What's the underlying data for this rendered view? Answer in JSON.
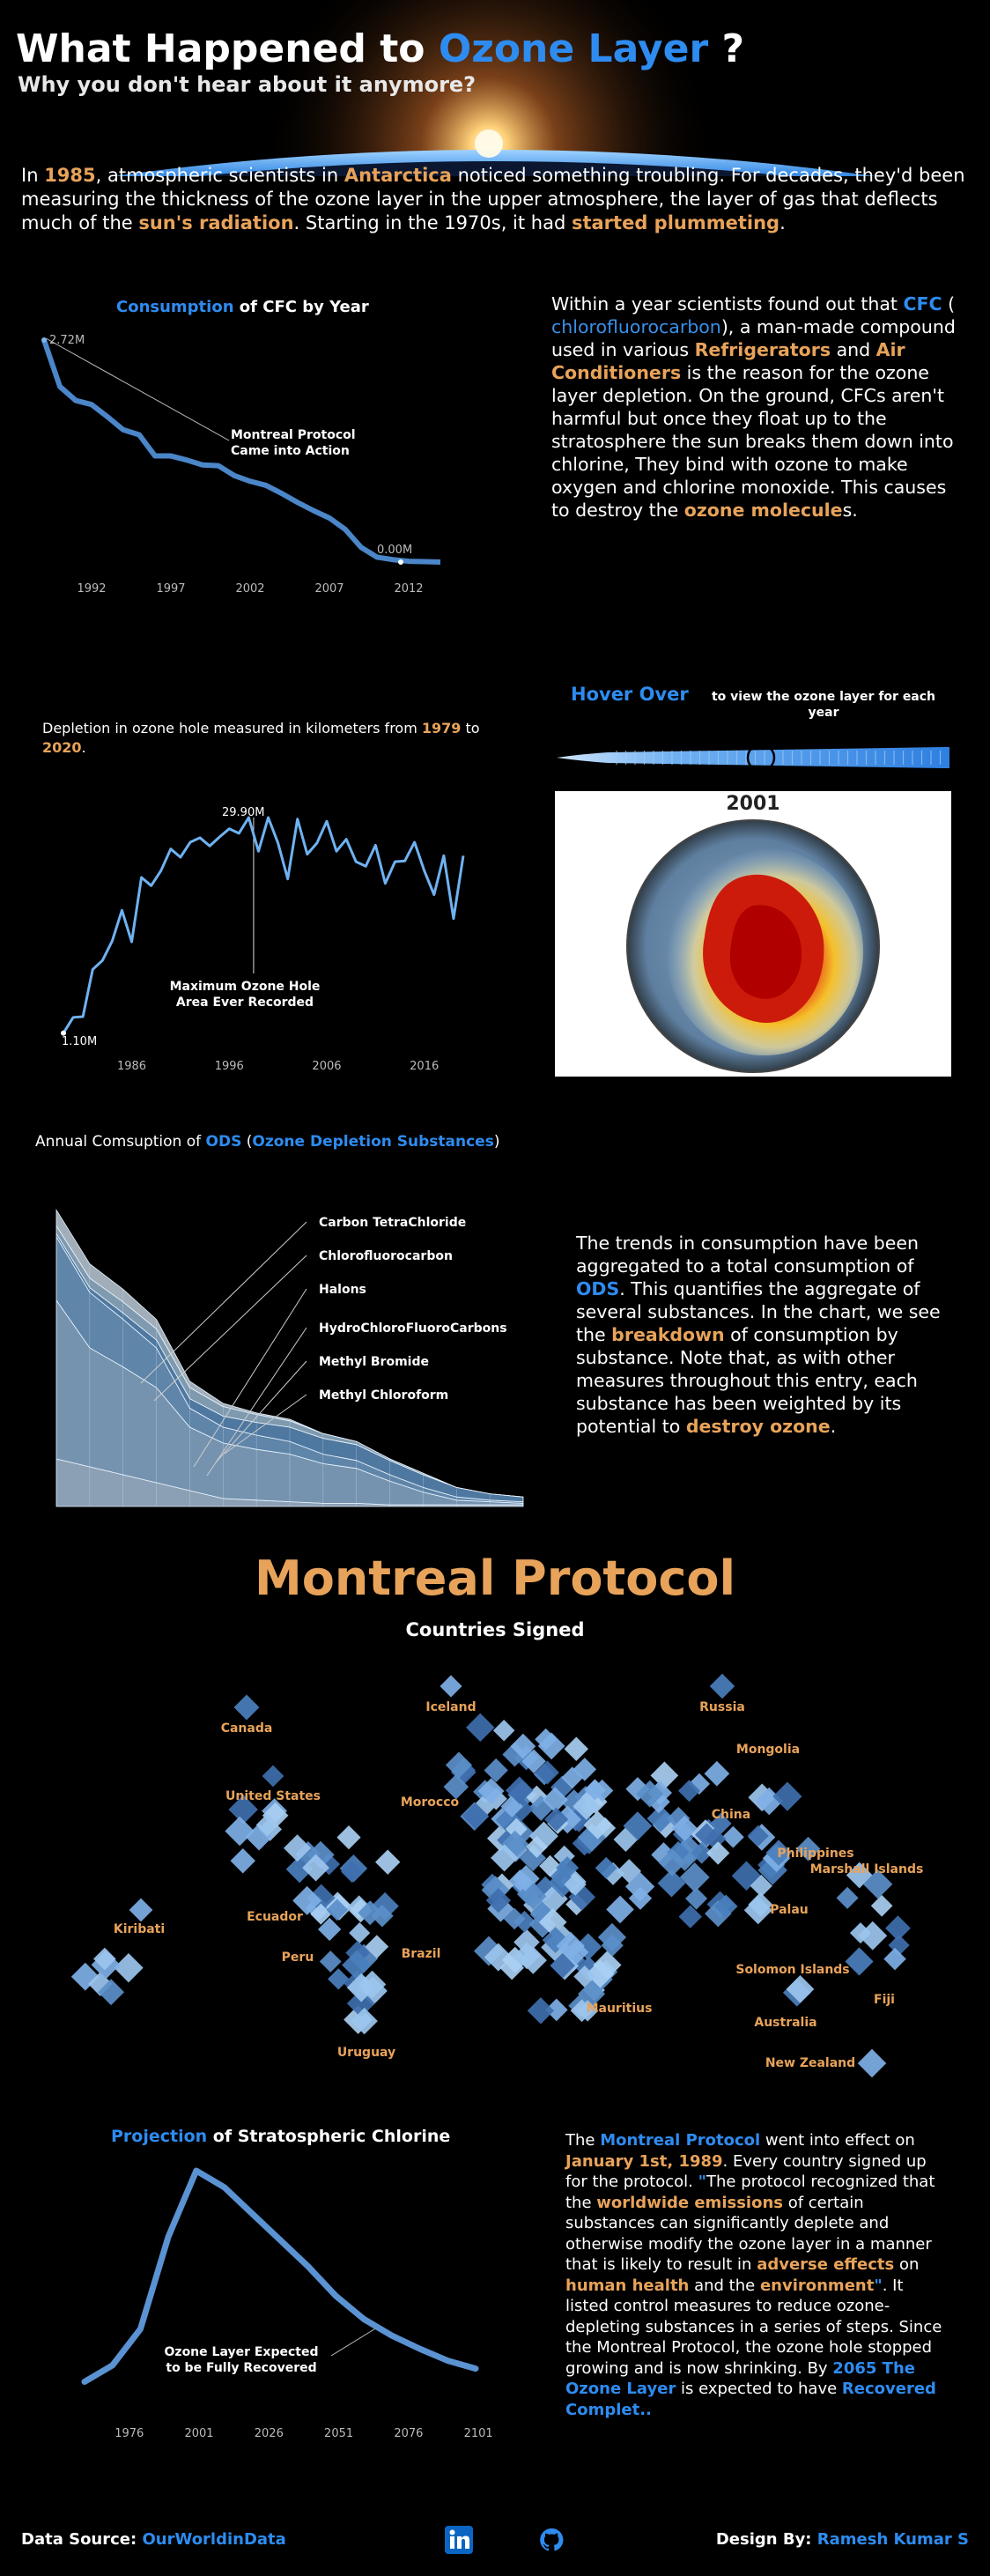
{
  "header": {
    "title_pre": "What Happened to ",
    "title_accent": "Ozone Layer",
    "title_post": " ?",
    "subtitle": "Why you don't hear about it anymore?"
  },
  "intro": {
    "t1": "In ",
    "h1": "1985",
    "t2": ", atmospheric scientists in ",
    "h2": "Antarctica",
    "t3": " noticed something troubling. For decades, they'd been measuring the thickness of the ozone layer in the upper atmosphere, the layer of gas that deflects much of the ",
    "h3": "sun's radiation",
    "t4": ". Starting in the 1970s, it had ",
    "h4": "started plummeting",
    "t5": "."
  },
  "cfc_section": {
    "title_accent": "Consumption",
    "title_rest": " of CFC by Year",
    "annotation_line1": "Montreal Protocol",
    "annotation_line2": "Came into Action",
    "label_max": "2.72M",
    "label_min": "0.00M",
    "text": {
      "t1": "Within a year scientists found out that ",
      "h1": "CFC",
      "t2": " ( ",
      "h2": "chlorofluorocarbon",
      "t3": "), a man-made compound used in various ",
      "h3": "Refrigerators",
      "t4": " and ",
      "h4": "Air Conditioners",
      "t5": " is the reason for the ozone layer depletion. On the ground, CFCs aren't harmful but once they float up to the stratosphere the sun breaks them down into chlorine, They bind with ozone to make oxygen and chlorine monoxide. This causes to destroy the ",
      "h5": "ozone molecule",
      "t6": "s."
    }
  },
  "hole_section": {
    "title_t1": "Depletion in ozone hole measured in kilometers from ",
    "title_h1": "1979",
    "title_t2": " to ",
    "title_h2": "2020",
    "title_t3": ".",
    "annotation_line1": "Maximum Ozone Hole",
    "annotation_line2": "Area Ever Recorded",
    "label_max": "29.90M",
    "label_min": "1.10M"
  },
  "hover": {
    "accent": "Hover Over",
    "rest": "to view the ozone layer for each year",
    "year": "2001"
  },
  "ods_section": {
    "title_t1": "Annual Comsuption of ",
    "title_h1": "ODS",
    "title_t2": " (",
    "title_h2": "Ozone Depletion Substances",
    "title_t3": ")",
    "text": {
      "t1": "The trends in consumption have been aggregated to a total consumption of ",
      "h1": "ODS",
      "t2": ". This quantifies the aggregate of several substances. In the chart, we see the ",
      "h2": "breakdown",
      "t3": " of consumption by substance. Note that, as with other measures throughout this entry, each substance has been weighted by its potential to ",
      "h3": "destroy ozone",
      "t4": "."
    }
  },
  "montreal": {
    "heading": "Montreal Protocol",
    "subheading": "Countries Signed",
    "countries": [
      {
        "name": "Canada",
        "x": 280,
        "y": 1966
      },
      {
        "name": "Iceland",
        "x": 512,
        "y": 1942
      },
      {
        "name": "Russia",
        "x": 820,
        "y": 1942
      },
      {
        "name": "Mongolia",
        "x": 872,
        "y": 1990
      },
      {
        "name": "United States",
        "x": 310,
        "y": 2043
      },
      {
        "name": "Morocco",
        "x": 488,
        "y": 2050
      },
      {
        "name": "China",
        "x": 830,
        "y": 2064
      },
      {
        "name": "Philippines",
        "x": 926,
        "y": 2108
      },
      {
        "name": "Marshall Islands",
        "x": 984,
        "y": 2126
      },
      {
        "name": "Kiribati",
        "x": 158,
        "y": 2194
      },
      {
        "name": "Ecuador",
        "x": 312,
        "y": 2180
      },
      {
        "name": "Palau",
        "x": 896,
        "y": 2172
      },
      {
        "name": "Peru",
        "x": 338,
        "y": 2226
      },
      {
        "name": "Brazil",
        "x": 478,
        "y": 2222
      },
      {
        "name": "Solomon Islands",
        "x": 900,
        "y": 2240
      },
      {
        "name": "Fiji",
        "x": 1004,
        "y": 2274
      },
      {
        "name": "Mauritius",
        "x": 703,
        "y": 2284
      },
      {
        "name": "Australia",
        "x": 892,
        "y": 2300
      },
      {
        "name": "Uruguay",
        "x": 416,
        "y": 2334
      },
      {
        "name": "New Zealand",
        "x": 920,
        "y": 2346
      }
    ]
  },
  "projection": {
    "title_accent": "Projection",
    "title_rest": " of Stratospheric Chlorine",
    "annotation_line1": "Ozone Layer Expected",
    "annotation_line2": "to be Fully Recovered",
    "text": {
      "t1": "The ",
      "h1": "Montreal Protocol",
      "t2": " went into effect on ",
      "h2": "January 1st, 1989",
      "t3": ". Every country signed up for the protocol. ",
      "q1": "\"",
      "t4": "The protocol recognized that the ",
      "h3": "worldwide emissions",
      "t5": " of certain substances can significantly deplete and otherwise modify the ozone layer in a manner that is likely to result in ",
      "h4": "adverse effects",
      "t6": " on ",
      "h5": "human health",
      "t7": " and the ",
      "h6": "environment",
      "q2": "\"",
      "t8": ". It listed control measures to reduce ozone-depleting substances in a series of steps. Since the Montreal Protocol, the ozone hole stopped growing and is now shrinking. By ",
      "h7": "2065 The Ozone Layer",
      "t9": " is expected to have ",
      "h8": "Recovered Complet..",
      "t10": ""
    }
  },
  "footer": {
    "source_label": "Data Source: ",
    "source_value": "OurWorldinData",
    "design_label": "Design By: ",
    "design_value": "Ramesh Kumar S",
    "icons": [
      "linkedin-icon",
      "github-icon"
    ]
  },
  "colors": {
    "orange": "#e8a35a",
    "blue": "#2e8cf0",
    "line": "#4a86c8",
    "bg": "#000000"
  },
  "chart_data": [
    {
      "type": "line",
      "title": "Consumption of CFC by Year",
      "x": [
        1989,
        1990,
        1991,
        1992,
        1993,
        1994,
        1995,
        1996,
        1997,
        1998,
        1999,
        2000,
        2001,
        2002,
        2003,
        2004,
        2005,
        2006,
        2007,
        2008,
        2009,
        2010,
        2011,
        2012,
        2013,
        2014
      ],
      "values": [
        2.72,
        2.15,
        1.98,
        1.93,
        1.78,
        1.62,
        1.56,
        1.3,
        1.3,
        1.25,
        1.19,
        1.18,
        1.06,
        0.99,
        0.94,
        0.84,
        0.73,
        0.63,
        0.54,
        0.4,
        0.18,
        0.06,
        0.03,
        0.01,
        0.005,
        0.0
      ],
      "xticks": [
        1992,
        1997,
        2002,
        2007,
        2012
      ],
      "ylabel": "",
      "xlabel": ""
    },
    {
      "type": "line",
      "title": "Depletion in ozone hole",
      "x": [
        1979,
        1980,
        1981,
        1982,
        1983,
        1984,
        1985,
        1986,
        1987,
        1988,
        1989,
        1990,
        1991,
        1992,
        1993,
        1994,
        1995,
        1996,
        1997,
        1998,
        1999,
        2000,
        2001,
        2002,
        2003,
        2004,
        2005,
        2006,
        2007,
        2008,
        2009,
        2010,
        2011,
        2012,
        2013,
        2014,
        2015,
        2016,
        2017,
        2018,
        2019,
        2020
      ],
      "values": [
        1.1,
        3.2,
        3.3,
        9.6,
        10.8,
        13.4,
        17.5,
        13.3,
        21.9,
        20.8,
        22.8,
        25.7,
        24.6,
        26.6,
        27.2,
        26.1,
        27.3,
        28.4,
        27.8,
        29.9,
        25.4,
        29.9,
        26.5,
        21.7,
        29.7,
        25,
        26.5,
        29.4,
        25.4,
        27,
        24,
        23.4,
        26.2,
        21.1,
        24,
        24.1,
        26.6,
        22.8,
        19.6,
        24.8,
        16.4,
        24.8
      ],
      "xticks": [
        1986,
        1996,
        2006,
        2016
      ]
    },
    {
      "type": "area",
      "title": "Annual Comsuption of ODS",
      "x": [
        1986,
        1988,
        1990,
        1992,
        1994,
        1996,
        1998,
        2000,
        2002,
        2004,
        2006,
        2008,
        2010,
        2012,
        2014
      ],
      "series": [
        {
          "name": "Carbon TetraChloride",
          "values": [
            0.3,
            0.25,
            0.2,
            0.15,
            0.1,
            0.05,
            0.04,
            0.03,
            0.02,
            0.02,
            0.01,
            0.01,
            0.01,
            0.01,
            0.01
          ]
        },
        {
          "name": "Chlorofluorocarbon",
          "values": [
            1.0,
            0.75,
            0.68,
            0.6,
            0.4,
            0.35,
            0.32,
            0.3,
            0.25,
            0.22,
            0.15,
            0.08,
            0.03,
            0.02,
            0.01
          ]
        },
        {
          "name": "Halons",
          "values": [
            0.4,
            0.35,
            0.3,
            0.25,
            0.12,
            0.1,
            0.09,
            0.08,
            0.06,
            0.05,
            0.04,
            0.03,
            0.02,
            0.01,
            0.01
          ]
        },
        {
          "name": "HydroChloroFluoroCarbons",
          "values": [
            0.02,
            0.03,
            0.04,
            0.05,
            0.06,
            0.07,
            0.08,
            0.09,
            0.1,
            0.1,
            0.09,
            0.08,
            0.06,
            0.04,
            0.03
          ]
        },
        {
          "name": "Methyl Bromide",
          "values": [
            0.05,
            0.06,
            0.07,
            0.07,
            0.07,
            0.06,
            0.05,
            0.04,
            0.03,
            0.02,
            0.01,
            0.01,
            0.0,
            0.0,
            0.0
          ]
        },
        {
          "name": "Methyl Chloroform",
          "values": [
            0.1,
            0.09,
            0.08,
            0.06,
            0.04,
            0.02,
            0.01,
            0.01,
            0.0,
            0.0,
            0.0,
            0.0,
            0.0,
            0.0,
            0.0
          ]
        }
      ]
    },
    {
      "type": "line",
      "title": "Projection of Stratospheric Chlorine",
      "x": [
        1960,
        1970,
        1980,
        1990,
        2000,
        2010,
        2020,
        2030,
        2040,
        2050,
        2060,
        2070,
        2080,
        2090,
        2100
      ],
      "values": [
        0.3,
        0.55,
        1.1,
        2.5,
        3.5,
        3.25,
        2.85,
        2.45,
        2.05,
        1.6,
        1.25,
        1.0,
        0.8,
        0.62,
        0.5
      ],
      "xticks": [
        1976,
        2001,
        2026,
        2051,
        2076,
        2101
      ]
    }
  ]
}
